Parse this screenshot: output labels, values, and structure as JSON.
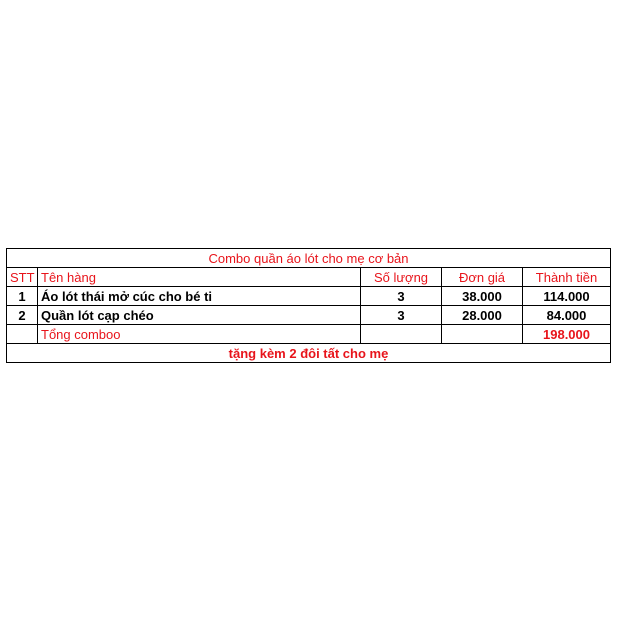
{
  "title": "Combo quần áo lót cho mẹ cơ bản",
  "headers": [
    "STT",
    "Tên hàng",
    "Số lượng",
    "Đơn giá",
    "Thành tiền"
  ],
  "rows": [
    {
      "stt": "1",
      "name": "Áo lót thái mở cúc cho bé ti",
      "qty": "3",
      "price": "38.000",
      "total": "114.000"
    },
    {
      "stt": "2",
      "name": "Quần lót cạp chéo",
      "qty": "3",
      "price": "28.000",
      "total": "84.000"
    }
  ],
  "summary": {
    "label": "Tổng comboo",
    "total": "198.000"
  },
  "footer": "tặng kèm 2 đôi tất cho mẹ",
  "colors": {
    "accent": "#e8141b",
    "text": "#000000"
  }
}
